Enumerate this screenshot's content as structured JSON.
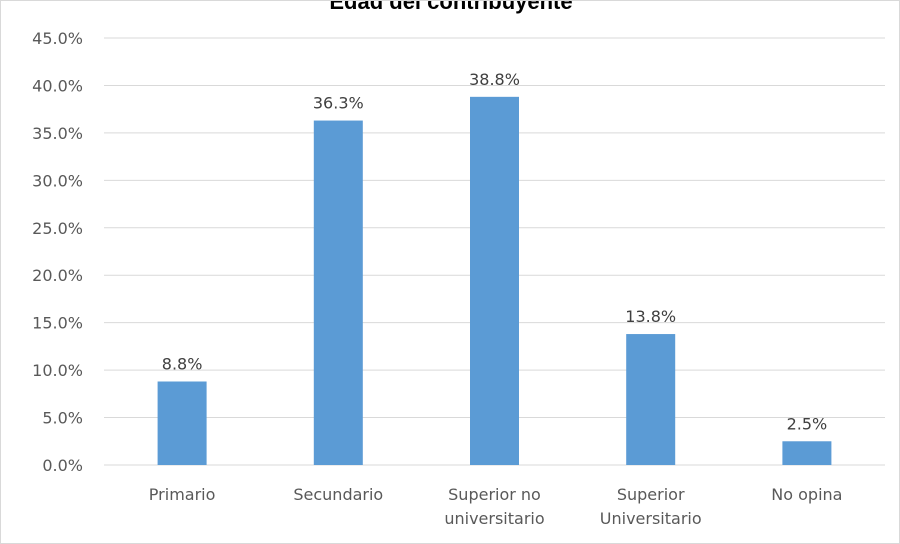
{
  "chart_data": {
    "type": "bar",
    "title": "Edad del contribuyente",
    "categories": [
      [
        "Primario"
      ],
      [
        "Secundario"
      ],
      [
        "Superior no",
        "universitario"
      ],
      [
        "Superior",
        "Universitario"
      ],
      [
        "No opina"
      ]
    ],
    "values": [
      8.8,
      36.3,
      38.8,
      13.8,
      2.5
    ],
    "data_labels": [
      "8.8%",
      "36.3%",
      "38.8%",
      "13.8%",
      "2.5%"
    ],
    "y_ticks": [
      "0.0%",
      "5.0%",
      "10.0%",
      "15.0%",
      "20.0%",
      "25.0%",
      "30.0%",
      "35.0%",
      "40.0%",
      "45.0%"
    ],
    "ylim": [
      0,
      45
    ],
    "grid": true,
    "legend": "none",
    "bar_color": "#5b9bd5",
    "grid_color": "#d9d9d9"
  }
}
